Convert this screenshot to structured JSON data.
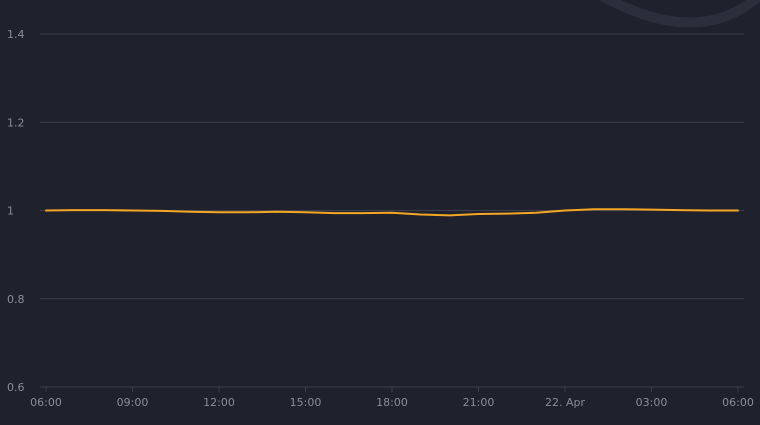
{
  "chart_data": {
    "type": "line",
    "title": "",
    "xlabel": "",
    "ylabel": "",
    "x_ticks": [
      "06:00",
      "09:00",
      "12:00",
      "15:00",
      "18:00",
      "21:00",
      "22. Apr",
      "03:00",
      "06:00"
    ],
    "y_ticks": [
      "0.6",
      "0.8",
      "1",
      "1.2",
      "1.4"
    ],
    "ylim": [
      0.6,
      1.4
    ],
    "grid": "horizontal",
    "legend": "none",
    "series": [
      {
        "color": "#f5a623",
        "x_hours": [
          0,
          1,
          2,
          3,
          4,
          5,
          6,
          7,
          8,
          9,
          10,
          11,
          12,
          13,
          14,
          15,
          16,
          17,
          18,
          19,
          20,
          21,
          22,
          23,
          24
        ],
        "values": [
          1.0,
          1.001,
          1.001,
          1.0,
          0.999,
          0.997,
          0.996,
          0.996,
          0.997,
          0.996,
          0.994,
          0.994,
          0.995,
          0.991,
          0.989,
          0.992,
          0.993,
          0.995,
          1.0,
          1.003,
          1.003,
          1.002,
          1.001,
          1.0,
          1.0
        ]
      }
    ]
  },
  "colors": {
    "background": "#1f212d",
    "grid": "#3b3e4b",
    "tick_label": "#8a8d99",
    "decoration": "#2b2e3b"
  }
}
